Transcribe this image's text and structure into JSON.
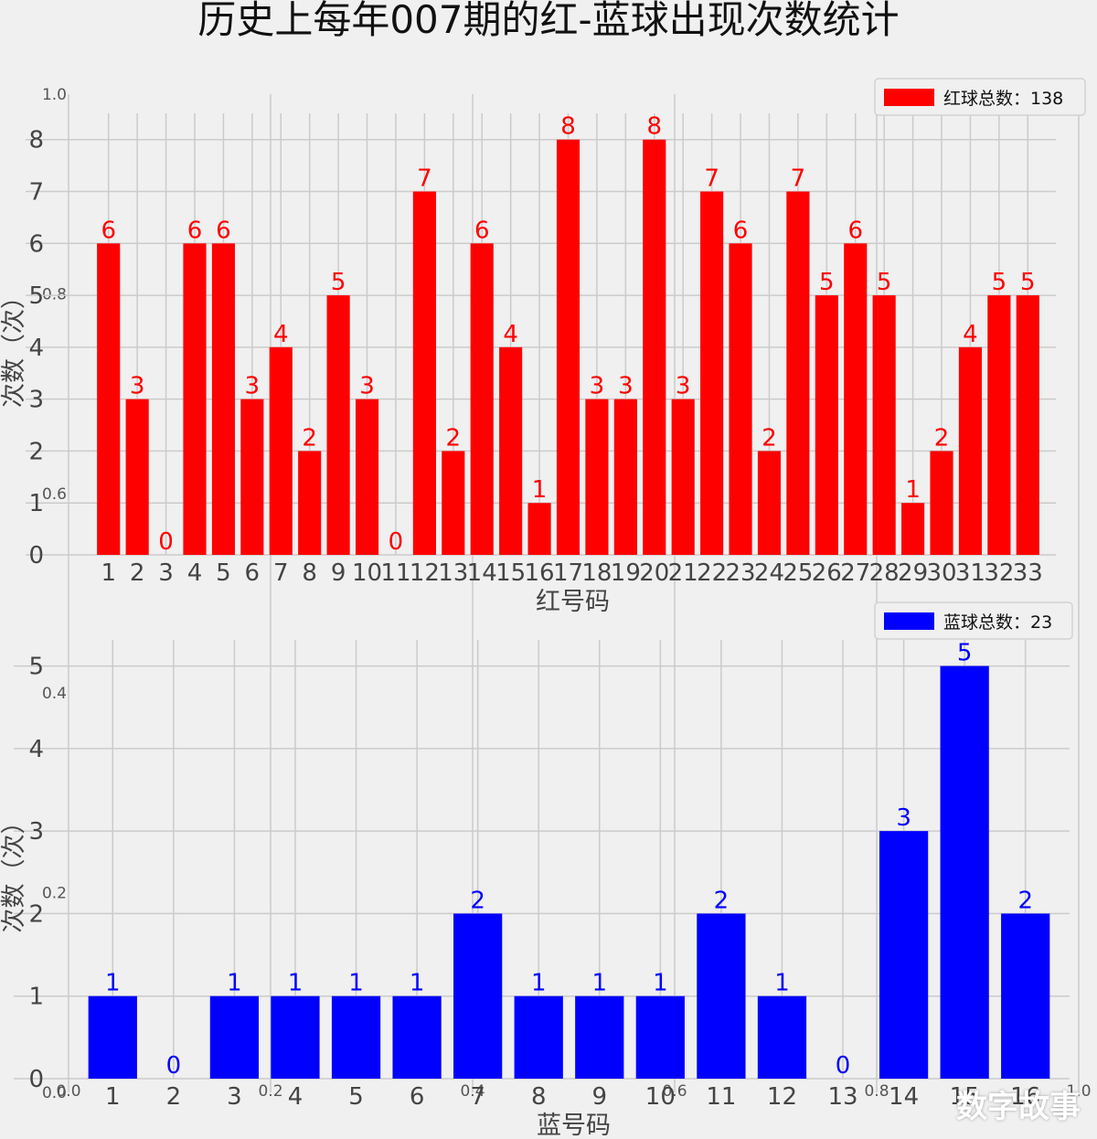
{
  "title": "历史上每年007期的红-蓝球出现次数统计",
  "watermark": "数字故事",
  "colors": {
    "red": "#ff0000",
    "blue": "#0000ff",
    "background": "#f0f0f0",
    "grid": "#cbcbcb",
    "tick_text": "#555555"
  },
  "chart_data": [
    {
      "type": "bar",
      "xlabel": "红号码",
      "ylabel": "次数（次）",
      "legend": "红球总数：138",
      "legend_position": "top-right",
      "ylim": [
        0,
        8.4
      ],
      "yticks": [
        0,
        1,
        2,
        3,
        4,
        5,
        6,
        7,
        8
      ],
      "grid": true,
      "categories": [
        "1",
        "2",
        "3",
        "4",
        "5",
        "6",
        "7",
        "8",
        "9",
        "10",
        "11",
        "12",
        "13",
        "14",
        "15",
        "16",
        "17",
        "18",
        "19",
        "20",
        "21",
        "22",
        "23",
        "24",
        "25",
        "26",
        "27",
        "28",
        "29",
        "30",
        "31",
        "32",
        "33"
      ],
      "values": [
        6,
        3,
        0,
        6,
        6,
        3,
        4,
        2,
        5,
        3,
        0,
        7,
        2,
        6,
        4,
        1,
        8,
        3,
        3,
        8,
        3,
        7,
        6,
        2,
        7,
        5,
        6,
        5,
        1,
        2,
        4,
        5,
        5
      ],
      "color": "red"
    },
    {
      "type": "bar",
      "xlabel": "蓝号码",
      "ylabel": "次数（次）",
      "legend": "蓝球总数：23",
      "legend_position": "top-right",
      "ylim": [
        0,
        5.25
      ],
      "yticks": [
        0,
        1,
        2,
        3,
        4,
        5
      ],
      "grid": true,
      "categories": [
        "1",
        "2",
        "3",
        "4",
        "5",
        "6",
        "7",
        "8",
        "9",
        "10",
        "11",
        "12",
        "13",
        "14",
        "15",
        "16"
      ],
      "values": [
        1,
        0,
        1,
        1,
        1,
        1,
        2,
        1,
        1,
        1,
        2,
        1,
        0,
        3,
        5,
        2
      ],
      "color": "blue"
    }
  ],
  "background_axes": {
    "ytick_labels": [
      "1.0",
      "0.8",
      "0.6",
      "0.4",
      "0.2",
      "0.0"
    ],
    "xtick_labels": [
      "0.0",
      "0.2",
      "0.4",
      "0.6",
      "0.8",
      "1.0"
    ]
  }
}
